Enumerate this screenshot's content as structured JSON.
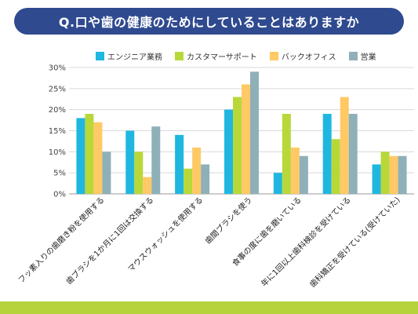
{
  "title": "Q.口や歯の健康のためにしていることはありますか",
  "chart_data": {
    "type": "bar",
    "title": "Q.口や歯の健康のためにしていることはありますか",
    "categories": [
      "フッ素入りの歯磨き粉を使用する",
      "歯ブラシを1か月に1回は交換する",
      "マウスウォッシュを使用する",
      "歯間ブラシを使う",
      "食事の度に歯を磨いている",
      "年に1回以上歯科検診を受けている",
      "歯科矯正を受けている(受けていた)"
    ],
    "series": [
      {
        "name": "エンジニア業務",
        "color": "#1fb7e0",
        "values": [
          18,
          15,
          14,
          20,
          5,
          19,
          7
        ]
      },
      {
        "name": "カスタマーサポート",
        "color": "#b8d83a",
        "values": [
          19,
          10,
          6,
          23,
          19,
          13,
          10
        ]
      },
      {
        "name": "バックオフィス",
        "color": "#ffc966",
        "values": [
          17,
          4,
          11,
          26,
          11,
          23,
          9
        ]
      },
      {
        "name": "営業",
        "color": "#8fb0b8",
        "values": [
          10,
          16,
          7,
          29,
          9,
          19,
          9
        ]
      }
    ],
    "y_ticks": [
      "0%",
      "5%",
      "10%",
      "15%",
      "20%",
      "25%",
      "30%"
    ],
    "ylim": [
      0,
      30
    ],
    "grid": true,
    "legend_position": "top"
  }
}
